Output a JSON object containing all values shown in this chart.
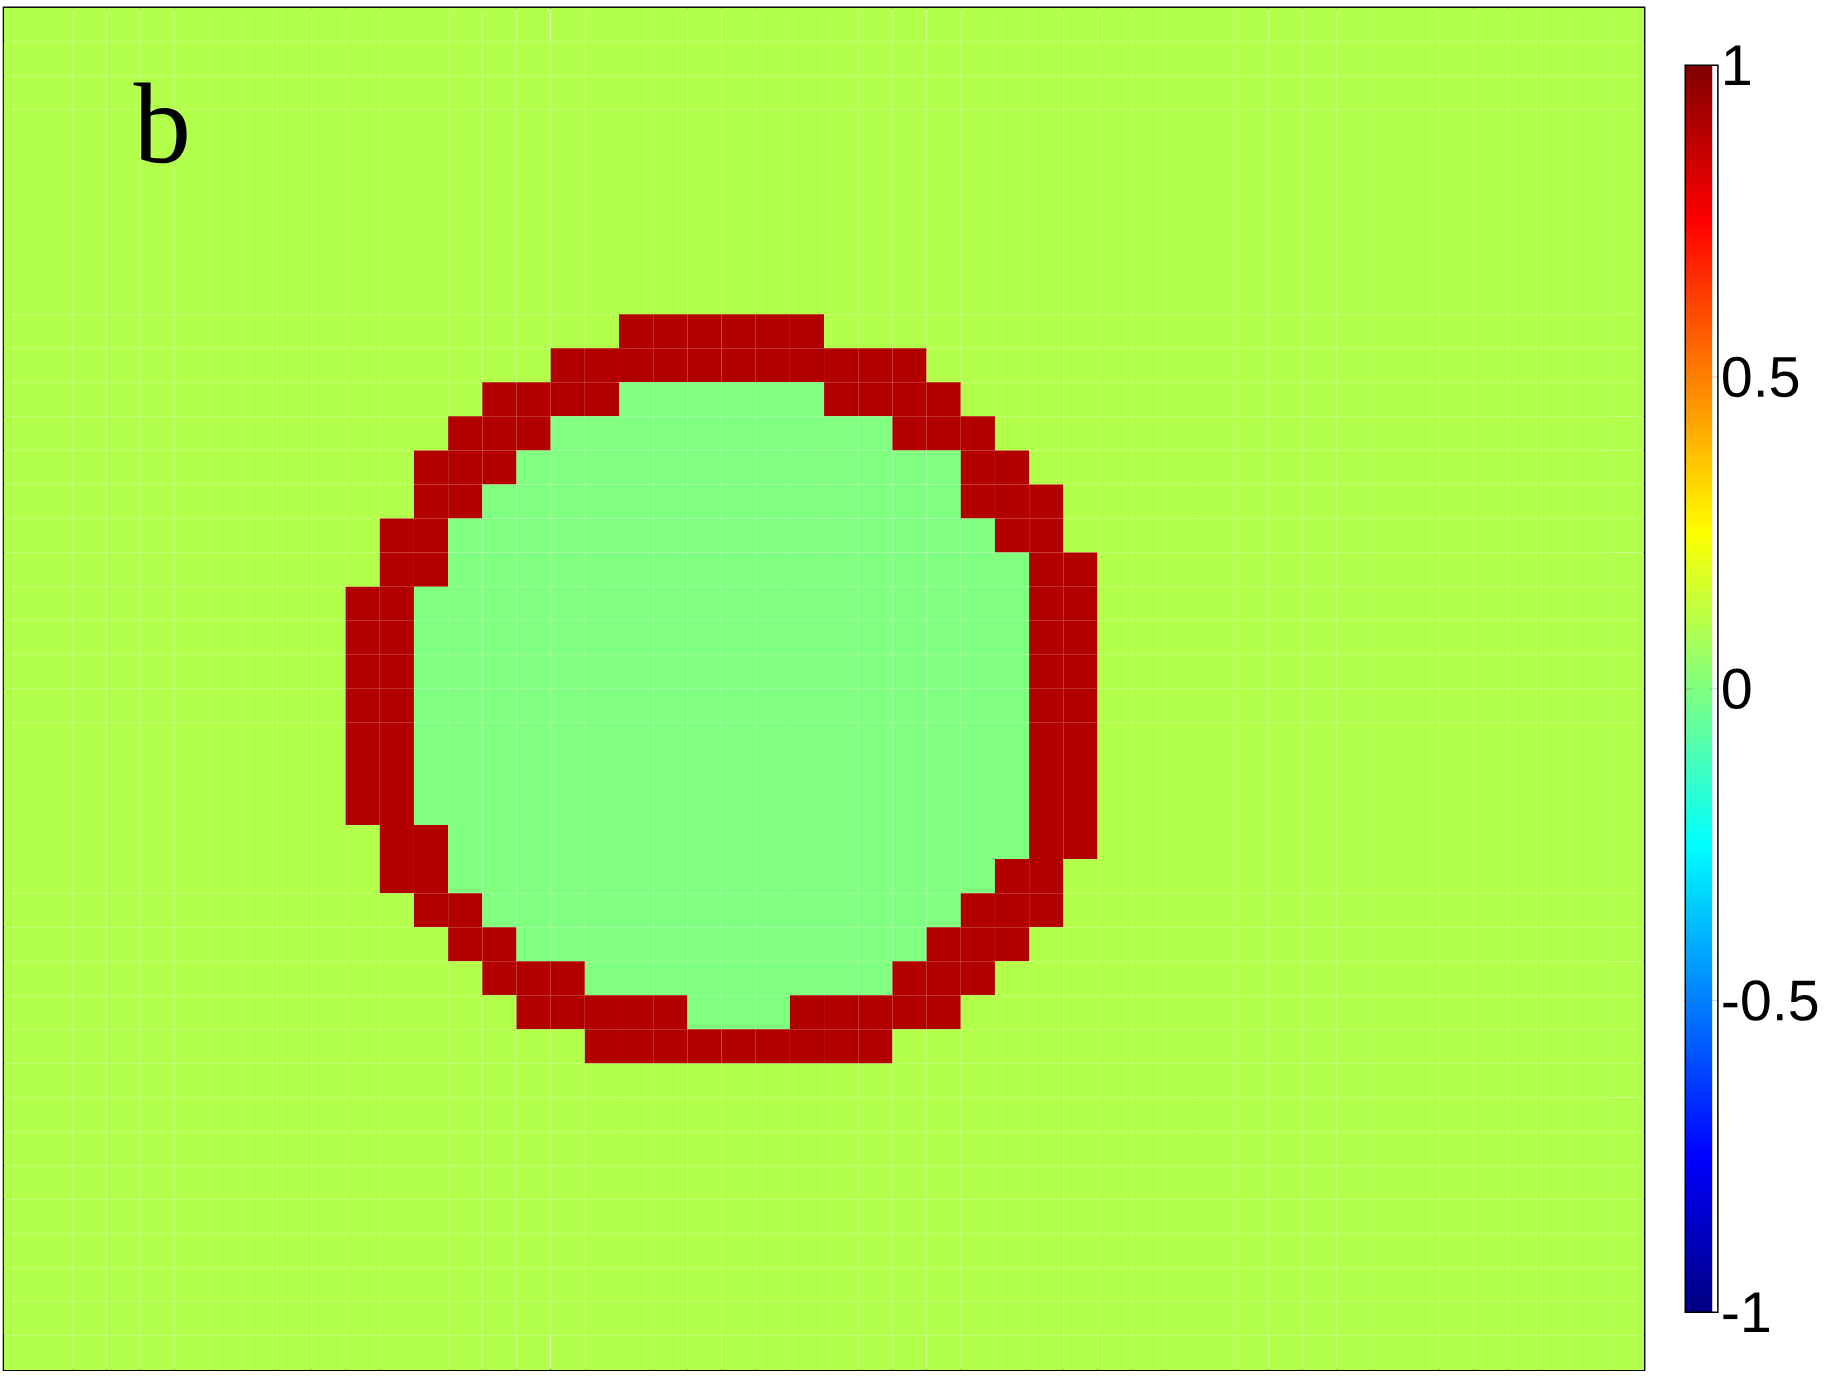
{
  "chart_data": {
    "type": "heatmap",
    "annotations": [
      "b"
    ],
    "clim": [
      -1,
      1
    ],
    "cticks": [
      -1,
      -0.5,
      0,
      0.5,
      1
    ],
    "categories": [
      null,
      null,
      null,
      null,
      null,
      null,
      null,
      null,
      null,
      null,
      null,
      null,
      null,
      null,
      null,
      null,
      null,
      null,
      null,
      null,
      null,
      null,
      null,
      null,
      null,
      null,
      null,
      null,
      null,
      null,
      null,
      null,
      null,
      null,
      null,
      null,
      null,
      null,
      null,
      null,
      null,
      null,
      null,
      null,
      null,
      null,
      null,
      null
    ],
    "y_categories": [
      null,
      null,
      null,
      null,
      null,
      null,
      null,
      null,
      null,
      null,
      null,
      null,
      null,
      null,
      null,
      null,
      null,
      null,
      null,
      null,
      null,
      null,
      null,
      null,
      null,
      null,
      null,
      null,
      null,
      null,
      null,
      null,
      null,
      null,
      null,
      null,
      null,
      null,
      null,
      null
    ],
    "cells": [
      [
        0.1,
        0.1,
        0.1,
        0.1,
        0.1,
        0.1,
        0.1,
        0.1,
        0.1,
        0.1,
        0.1,
        0.1,
        0.1,
        0.1,
        0.1,
        0.1,
        0.1,
        0.1,
        0.1,
        0.1,
        0.1,
        0.1,
        0.1,
        0.1,
        0.1,
        0.1,
        0.1,
        0.1,
        0.1,
        0.1,
        0.1,
        0.1,
        0.1,
        0.1,
        0.1,
        0.1,
        0.1,
        0.1,
        0.1,
        0.1,
        0.1,
        0.1,
        0.1,
        0.1,
        0.1,
        0.1,
        0.1,
        0.1
      ],
      [
        0.1,
        0.1,
        0.1,
        0.1,
        0.1,
        0.1,
        0.1,
        0.1,
        0.1,
        0.1,
        0.1,
        0.1,
        0.1,
        0.1,
        0.1,
        0.1,
        0.1,
        0.1,
        0.1,
        0.1,
        0.1,
        0.1,
        0.1,
        0.1,
        0.1,
        0.1,
        0.1,
        0.1,
        0.1,
        0.1,
        0.1,
        0.1,
        0.1,
        0.1,
        0.1,
        0.1,
        0.1,
        0.1,
        0.1,
        0.1,
        0.1,
        0.1,
        0.1,
        0.1,
        0.1,
        0.1,
        0.1,
        0.1
      ],
      [
        0.1,
        0.1,
        0.1,
        0.1,
        0.1,
        0.1,
        0.1,
        0.1,
        0.1,
        0.1,
        0.1,
        0.1,
        0.1,
        0.1,
        0.1,
        0.1,
        0.1,
        0.1,
        0.1,
        0.1,
        0.1,
        0.1,
        0.1,
        0.1,
        0.1,
        0.1,
        0.1,
        0.1,
        0.1,
        0.1,
        0.1,
        0.1,
        0.1,
        0.1,
        0.1,
        0.1,
        0.1,
        0.1,
        0.1,
        0.1,
        0.1,
        0.1,
        0.1,
        0.1,
        0.1,
        0.1,
        0.1,
        0.1
      ],
      [
        0.1,
        0.1,
        0.1,
        0.1,
        0.1,
        0.1,
        0.1,
        0.1,
        0.1,
        0.1,
        0.1,
        0.1,
        0.1,
        0.1,
        0.1,
        0.1,
        0.1,
        0.1,
        0.1,
        0.1,
        0.1,
        0.1,
        0.1,
        0.1,
        0.1,
        0.1,
        0.1,
        0.1,
        0.1,
        0.1,
        0.1,
        0.1,
        0.1,
        0.1,
        0.1,
        0.1,
        0.1,
        0.1,
        0.1,
        0.1,
        0.1,
        0.1,
        0.1,
        0.1,
        0.1,
        0.1,
        0.1,
        0.1
      ],
      [
        0.1,
        0.1,
        0.1,
        0.1,
        0.1,
        0.1,
        0.1,
        0.1,
        0.1,
        0.1,
        0.1,
        0.1,
        0.1,
        0.1,
        0.1,
        0.1,
        0.1,
        0.1,
        0.1,
        0.1,
        0.1,
        0.1,
        0.1,
        0.1,
        0.1,
        0.1,
        0.1,
        0.1,
        0.1,
        0.1,
        0.1,
        0.1,
        0.1,
        0.1,
        0.1,
        0.1,
        0.1,
        0.1,
        0.1,
        0.1,
        0.1,
        0.1,
        0.1,
        0.1,
        0.1,
        0.1,
        0.1,
        0.1
      ],
      [
        0.1,
        0.1,
        0.1,
        0.1,
        0.1,
        0.1,
        0.1,
        0.1,
        0.1,
        0.1,
        0.1,
        0.1,
        0.1,
        0.1,
        0.1,
        0.1,
        0.1,
        0.1,
        0.1,
        0.1,
        0.1,
        0.1,
        0.1,
        0.1,
        0.1,
        0.1,
        0.1,
        0.1,
        0.1,
        0.1,
        0.1,
        0.1,
        0.1,
        0.1,
        0.1,
        0.1,
        0.1,
        0.1,
        0.1,
        0.1,
        0.1,
        0.1,
        0.1,
        0.1,
        0.1,
        0.1,
        0.1,
        0.1
      ],
      [
        0.1,
        0.1,
        0.1,
        0.1,
        0.1,
        0.1,
        0.1,
        0.1,
        0.1,
        0.1,
        0.1,
        0.1,
        0.1,
        0.1,
        0.1,
        0.1,
        0.1,
        0.1,
        0.1,
        0.1,
        0.1,
        0.1,
        0.1,
        0.1,
        0.1,
        0.1,
        0.1,
        0.1,
        0.1,
        0.1,
        0.1,
        0.1,
        0.1,
        0.1,
        0.1,
        0.1,
        0.1,
        0.1,
        0.1,
        0.1,
        0.1,
        0.1,
        0.1,
        0.1,
        0.1,
        0.1,
        0.1,
        0.1
      ],
      [
        0.1,
        0.1,
        0.1,
        0.1,
        0.1,
        0.1,
        0.1,
        0.1,
        0.1,
        0.1,
        0.1,
        0.1,
        0.1,
        0.1,
        0.1,
        0.1,
        0.1,
        0.1,
        0.1,
        0.1,
        0.1,
        0.1,
        0.1,
        0.1,
        0.1,
        0.1,
        0.1,
        0.1,
        0.1,
        0.1,
        0.1,
        0.1,
        0.1,
        0.1,
        0.1,
        0.1,
        0.1,
        0.1,
        0.1,
        0.1,
        0.1,
        0.1,
        0.1,
        0.1,
        0.1,
        0.1,
        0.1,
        0.1
      ],
      [
        0.1,
        0.1,
        0.1,
        0.1,
        0.1,
        0.1,
        0.1,
        0.1,
        0.1,
        0.1,
        0.1,
        0.1,
        0.1,
        0.1,
        0.1,
        0.1,
        0.1,
        0.1,
        0.1,
        0.1,
        0.1,
        0.1,
        0.1,
        0.1,
        0.1,
        0.1,
        0.1,
        0.1,
        0.1,
        0.1,
        0.1,
        0.1,
        0.1,
        0.1,
        0.1,
        0.1,
        0.1,
        0.1,
        0.1,
        0.1,
        0.1,
        0.1,
        0.1,
        0.1,
        0.1,
        0.1,
        0.1,
        0.1
      ],
      [
        0.1,
        0.1,
        0.1,
        0.1,
        0.1,
        0.1,
        0.1,
        0.1,
        0.1,
        0.1,
        0.1,
        0.1,
        0.1,
        0.1,
        0.1,
        0.1,
        0.1,
        0.1,
        0.9,
        0.9,
        0.9,
        0.9,
        0.9,
        0.9,
        0.1,
        0.1,
        0.1,
        0.1,
        0.1,
        0.1,
        0.1,
        0.1,
        0.1,
        0.1,
        0.1,
        0.1,
        0.1,
        0.1,
        0.1,
        0.1,
        0.1,
        0.1,
        0.1,
        0.1,
        0.1,
        0.1,
        0.1,
        0.1
      ],
      [
        0.1,
        0.1,
        0.1,
        0.1,
        0.1,
        0.1,
        0.1,
        0.1,
        0.1,
        0.1,
        0.1,
        0.1,
        0.1,
        0.1,
        0.1,
        0.1,
        0.9,
        0.9,
        0.9,
        0.9,
        0.9,
        0.9,
        0.9,
        0.9,
        0.9,
        0.9,
        0.9,
        0.1,
        0.1,
        0.1,
        0.1,
        0.1,
        0.1,
        0.1,
        0.1,
        0.1,
        0.1,
        0.1,
        0.1,
        0.1,
        0.1,
        0.1,
        0.1,
        0.1,
        0.1,
        0.1,
        0.1,
        0.1
      ],
      [
        0.1,
        0.1,
        0.1,
        0.1,
        0.1,
        0.1,
        0.1,
        0.1,
        0.1,
        0.1,
        0.1,
        0.1,
        0.1,
        0.1,
        0.9,
        0.9,
        0.9,
        0.9,
        0,
        0,
        0,
        0,
        0,
        0,
        0.9,
        0.9,
        0.9,
        0.9,
        0.1,
        0.1,
        0.1,
        0.1,
        0.1,
        0.1,
        0.1,
        0.1,
        0.1,
        0.1,
        0.1,
        0.1,
        0.1,
        0.1,
        0.1,
        0.1,
        0.1,
        0.1,
        0.1,
        0.1
      ],
      [
        0.1,
        0.1,
        0.1,
        0.1,
        0.1,
        0.1,
        0.1,
        0.1,
        0.1,
        0.1,
        0.1,
        0.1,
        0.1,
        0.9,
        0.9,
        0.9,
        0,
        0,
        0,
        0,
        0,
        0,
        0,
        0,
        0,
        0,
        0.9,
        0.9,
        0.9,
        0.1,
        0.1,
        0.1,
        0.1,
        0.1,
        0.1,
        0.1,
        0.1,
        0.1,
        0.1,
        0.1,
        0.1,
        0.1,
        0.1,
        0.1,
        0.1,
        0.1,
        0.1,
        0.1
      ],
      [
        0.1,
        0.1,
        0.1,
        0.1,
        0.1,
        0.1,
        0.1,
        0.1,
        0.1,
        0.1,
        0.1,
        0.1,
        0.9,
        0.9,
        0.9,
        0,
        0,
        0,
        0,
        0,
        0,
        0,
        0,
        0,
        0,
        0,
        0,
        0,
        0.9,
        0.9,
        0.1,
        0.1,
        0.1,
        0.1,
        0.1,
        0.1,
        0.1,
        0.1,
        0.1,
        0.1,
        0.1,
        0.1,
        0.1,
        0.1,
        0.1,
        0.1,
        0.1,
        0.1
      ],
      [
        0.1,
        0.1,
        0.1,
        0.1,
        0.1,
        0.1,
        0.1,
        0.1,
        0.1,
        0.1,
        0.1,
        0.1,
        0.9,
        0.9,
        0,
        0,
        0,
        0,
        0,
        0,
        0,
        0,
        0,
        0,
        0,
        0,
        0,
        0,
        0.9,
        0.9,
        0.9,
        0.1,
        0.1,
        0.1,
        0.1,
        0.1,
        0.1,
        0.1,
        0.1,
        0.1,
        0.1,
        0.1,
        0.1,
        0.1,
        0.1,
        0.1,
        0.1,
        0.1
      ],
      [
        0.1,
        0.1,
        0.1,
        0.1,
        0.1,
        0.1,
        0.1,
        0.1,
        0.1,
        0.1,
        0.1,
        0.9,
        0.9,
        0,
        0,
        0,
        0,
        0,
        0,
        0,
        0,
        0,
        0,
        0,
        0,
        0,
        0,
        0,
        0,
        0.9,
        0.9,
        0.1,
        0.1,
        0.1,
        0.1,
        0.1,
        0.1,
        0.1,
        0.1,
        0.1,
        0.1,
        0.1,
        0.1,
        0.1,
        0.1,
        0.1,
        0.1,
        0.1
      ],
      [
        0.1,
        0.1,
        0.1,
        0.1,
        0.1,
        0.1,
        0.1,
        0.1,
        0.1,
        0.1,
        0.1,
        0.9,
        0.9,
        0,
        0,
        0,
        0,
        0,
        0,
        0,
        0,
        0,
        0,
        0,
        0,
        0,
        0,
        0,
        0,
        0,
        0.9,
        0.9,
        0.1,
        0.1,
        0.1,
        0.1,
        0.1,
        0.1,
        0.1,
        0.1,
        0.1,
        0.1,
        0.1,
        0.1,
        0.1,
        0.1,
        0.1,
        0.1
      ],
      [
        0.1,
        0.1,
        0.1,
        0.1,
        0.1,
        0.1,
        0.1,
        0.1,
        0.1,
        0.1,
        0.9,
        0.9,
        0,
        0,
        0,
        0,
        0,
        0,
        0,
        0,
        0,
        0,
        0,
        0,
        0,
        0,
        0,
        0,
        0,
        0,
        0.9,
        0.9,
        0.1,
        0.1,
        0.1,
        0.1,
        0.1,
        0.1,
        0.1,
        0.1,
        0.1,
        0.1,
        0.1,
        0.1,
        0.1,
        0.1,
        0.1,
        0.1
      ],
      [
        0.1,
        0.1,
        0.1,
        0.1,
        0.1,
        0.1,
        0.1,
        0.1,
        0.1,
        0.1,
        0.9,
        0.9,
        0,
        0,
        0,
        0,
        0,
        0,
        0,
        0,
        0,
        0,
        0,
        0,
        0,
        0,
        0,
        0,
        0,
        0,
        0.9,
        0.9,
        0.1,
        0.1,
        0.1,
        0.1,
        0.1,
        0.1,
        0.1,
        0.1,
        0.1,
        0.1,
        0.1,
        0.1,
        0.1,
        0.1,
        0.1,
        0.1
      ],
      [
        0.1,
        0.1,
        0.1,
        0.1,
        0.1,
        0.1,
        0.1,
        0.1,
        0.1,
        0.1,
        0.9,
        0.9,
        0,
        0,
        0,
        0,
        0,
        0,
        0,
        0,
        0,
        0,
        0,
        0,
        0,
        0,
        0,
        0,
        0,
        0,
        0.9,
        0.9,
        0.1,
        0.1,
        0.1,
        0.1,
        0.1,
        0.1,
        0.1,
        0.1,
        0.1,
        0.1,
        0.1,
        0.1,
        0.1,
        0.1,
        0.1,
        0.1
      ],
      [
        0.1,
        0.1,
        0.1,
        0.1,
        0.1,
        0.1,
        0.1,
        0.1,
        0.1,
        0.1,
        0.9,
        0.9,
        0,
        0,
        0,
        0,
        0,
        0,
        0,
        0,
        0,
        0,
        0,
        0,
        0,
        0,
        0,
        0,
        0,
        0,
        0.9,
        0.9,
        0.1,
        0.1,
        0.1,
        0.1,
        0.1,
        0.1,
        0.1,
        0.1,
        0.1,
        0.1,
        0.1,
        0.1,
        0.1,
        0.1,
        0.1,
        0.1
      ],
      [
        0.1,
        0.1,
        0.1,
        0.1,
        0.1,
        0.1,
        0.1,
        0.1,
        0.1,
        0.1,
        0.9,
        0.9,
        0,
        0,
        0,
        0,
        0,
        0,
        0,
        0,
        0,
        0,
        0,
        0,
        0,
        0,
        0,
        0,
        0,
        0,
        0.9,
        0.9,
        0.1,
        0.1,
        0.1,
        0.1,
        0.1,
        0.1,
        0.1,
        0.1,
        0.1,
        0.1,
        0.1,
        0.1,
        0.1,
        0.1,
        0.1,
        0.1
      ],
      [
        0.1,
        0.1,
        0.1,
        0.1,
        0.1,
        0.1,
        0.1,
        0.1,
        0.1,
        0.1,
        0.9,
        0.9,
        0,
        0,
        0,
        0,
        0,
        0,
        0,
        0,
        0,
        0,
        0,
        0,
        0,
        0,
        0,
        0,
        0,
        0,
        0.9,
        0.9,
        0.1,
        0.1,
        0.1,
        0.1,
        0.1,
        0.1,
        0.1,
        0.1,
        0.1,
        0.1,
        0.1,
        0.1,
        0.1,
        0.1,
        0.1,
        0.1
      ],
      [
        0.1,
        0.1,
        0.1,
        0.1,
        0.1,
        0.1,
        0.1,
        0.1,
        0.1,
        0.1,
        0.9,
        0.9,
        0,
        0,
        0,
        0,
        0,
        0,
        0,
        0,
        0,
        0,
        0,
        0,
        0,
        0,
        0,
        0,
        0,
        0,
        0.9,
        0.9,
        0.1,
        0.1,
        0.1,
        0.1,
        0.1,
        0.1,
        0.1,
        0.1,
        0.1,
        0.1,
        0.1,
        0.1,
        0.1,
        0.1,
        0.1,
        0.1
      ],
      [
        0.1,
        0.1,
        0.1,
        0.1,
        0.1,
        0.1,
        0.1,
        0.1,
        0.1,
        0.1,
        0.1,
        0.9,
        0.9,
        0,
        0,
        0,
        0,
        0,
        0,
        0,
        0,
        0,
        0,
        0,
        0,
        0,
        0,
        0,
        0,
        0,
        0.9,
        0.9,
        0.1,
        0.1,
        0.1,
        0.1,
        0.1,
        0.1,
        0.1,
        0.1,
        0.1,
        0.1,
        0.1,
        0.1,
        0.1,
        0.1,
        0.1,
        0.1
      ],
      [
        0.1,
        0.1,
        0.1,
        0.1,
        0.1,
        0.1,
        0.1,
        0.1,
        0.1,
        0.1,
        0.1,
        0.9,
        0.9,
        0,
        0,
        0,
        0,
        0,
        0,
        0,
        0,
        0,
        0,
        0,
        0,
        0,
        0,
        0,
        0,
        0.9,
        0.9,
        0.1,
        0.1,
        0.1,
        0.1,
        0.1,
        0.1,
        0.1,
        0.1,
        0.1,
        0.1,
        0.1,
        0.1,
        0.1,
        0.1,
        0.1,
        0.1,
        0.1
      ],
      [
        0.1,
        0.1,
        0.1,
        0.1,
        0.1,
        0.1,
        0.1,
        0.1,
        0.1,
        0.1,
        0.1,
        0.1,
        0.9,
        0.9,
        0,
        0,
        0,
        0,
        0,
        0,
        0,
        0,
        0,
        0,
        0,
        0,
        0,
        0,
        0.9,
        0.9,
        0.9,
        0.1,
        0.1,
        0.1,
        0.1,
        0.1,
        0.1,
        0.1,
        0.1,
        0.1,
        0.1,
        0.1,
        0.1,
        0.1,
        0.1,
        0.1,
        0.1,
        0.1
      ],
      [
        0.1,
        0.1,
        0.1,
        0.1,
        0.1,
        0.1,
        0.1,
        0.1,
        0.1,
        0.1,
        0.1,
        0.1,
        0.1,
        0.9,
        0.9,
        0,
        0,
        0,
        0,
        0,
        0,
        0,
        0,
        0,
        0,
        0,
        0,
        0.9,
        0.9,
        0.9,
        0.1,
        0.1,
        0.1,
        0.1,
        0.1,
        0.1,
        0.1,
        0.1,
        0.1,
        0.1,
        0.1,
        0.1,
        0.1,
        0.1,
        0.1,
        0.1,
        0.1,
        0.1
      ],
      [
        0.1,
        0.1,
        0.1,
        0.1,
        0.1,
        0.1,
        0.1,
        0.1,
        0.1,
        0.1,
        0.1,
        0.1,
        0.1,
        0.1,
        0.9,
        0.9,
        0.9,
        0,
        0,
        0,
        0,
        0,
        0,
        0,
        0,
        0,
        0.9,
        0.9,
        0.9,
        0.1,
        0.1,
        0.1,
        0.1,
        0.1,
        0.1,
        0.1,
        0.1,
        0.1,
        0.1,
        0.1,
        0.1,
        0.1,
        0.1,
        0.1,
        0.1,
        0.1,
        0.1,
        0.1
      ],
      [
        0.1,
        0.1,
        0.1,
        0.1,
        0.1,
        0.1,
        0.1,
        0.1,
        0.1,
        0.1,
        0.1,
        0.1,
        0.1,
        0.1,
        0.1,
        0.9,
        0.9,
        0.9,
        0.9,
        0.9,
        0,
        0,
        0,
        0.9,
        0.9,
        0.9,
        0.9,
        0.9,
        0.1,
        0.1,
        0.1,
        0.1,
        0.1,
        0.1,
        0.1,
        0.1,
        0.1,
        0.1,
        0.1,
        0.1,
        0.1,
        0.1,
        0.1,
        0.1,
        0.1,
        0.1,
        0.1,
        0.1
      ],
      [
        0.1,
        0.1,
        0.1,
        0.1,
        0.1,
        0.1,
        0.1,
        0.1,
        0.1,
        0.1,
        0.1,
        0.1,
        0.1,
        0.1,
        0.1,
        0.1,
        0.1,
        0.9,
        0.9,
        0.9,
        0.9,
        0.9,
        0.9,
        0.9,
        0.9,
        0.9,
        0.1,
        0.1,
        0.1,
        0.1,
        0.1,
        0.1,
        0.1,
        0.1,
        0.1,
        0.1,
        0.1,
        0.1,
        0.1,
        0.1,
        0.1,
        0.1,
        0.1,
        0.1,
        0.1,
        0.1,
        0.1,
        0.1
      ],
      [
        0.1,
        0.1,
        0.1,
        0.1,
        0.1,
        0.1,
        0.1,
        0.1,
        0.1,
        0.1,
        0.1,
        0.1,
        0.1,
        0.1,
        0.1,
        0.1,
        0.1,
        0.1,
        0.1,
        0.1,
        0.1,
        0.1,
        0.1,
        0.1,
        0.1,
        0.1,
        0.1,
        0.1,
        0.1,
        0.1,
        0.1,
        0.1,
        0.1,
        0.1,
        0.1,
        0.1,
        0.1,
        0.1,
        0.1,
        0.1,
        0.1,
        0.1,
        0.1,
        0.1,
        0.1,
        0.1,
        0.1,
        0.1
      ],
      [
        0.1,
        0.1,
        0.1,
        0.1,
        0.1,
        0.1,
        0.1,
        0.1,
        0.1,
        0.1,
        0.1,
        0.1,
        0.1,
        0.1,
        0.1,
        0.1,
        0.1,
        0.1,
        0.1,
        0.1,
        0.1,
        0.1,
        0.1,
        0.1,
        0.1,
        0.1,
        0.1,
        0.1,
        0.1,
        0.1,
        0.1,
        0.1,
        0.1,
        0.1,
        0.1,
        0.1,
        0.1,
        0.1,
        0.1,
        0.1,
        0.1,
        0.1,
        0.1,
        0.1,
        0.1,
        0.1,
        0.1,
        0.1
      ],
      [
        0.1,
        0.1,
        0.1,
        0.1,
        0.1,
        0.1,
        0.1,
        0.1,
        0.1,
        0.1,
        0.1,
        0.1,
        0.1,
        0.1,
        0.1,
        0.1,
        0.1,
        0.1,
        0.1,
        0.1,
        0.1,
        0.1,
        0.1,
        0.1,
        0.1,
        0.1,
        0.1,
        0.1,
        0.1,
        0.1,
        0.1,
        0.1,
        0.1,
        0.1,
        0.1,
        0.1,
        0.1,
        0.1,
        0.1,
        0.1,
        0.1,
        0.1,
        0.1,
        0.1,
        0.1,
        0.1,
        0.1,
        0.1
      ],
      [
        0.1,
        0.1,
        0.1,
        0.1,
        0.1,
        0.1,
        0.1,
        0.1,
        0.1,
        0.1,
        0.1,
        0.1,
        0.1,
        0.1,
        0.1,
        0.1,
        0.1,
        0.1,
        0.1,
        0.1,
        0.1,
        0.1,
        0.1,
        0.1,
        0.1,
        0.1,
        0.1,
        0.1,
        0.1,
        0.1,
        0.1,
        0.1,
        0.1,
        0.1,
        0.1,
        0.1,
        0.1,
        0.1,
        0.1,
        0.1,
        0.1,
        0.1,
        0.1,
        0.1,
        0.1,
        0.1,
        0.1,
        0.1
      ],
      [
        0.1,
        0.1,
        0.1,
        0.1,
        0.1,
        0.1,
        0.1,
        0.1,
        0.1,
        0.1,
        0.1,
        0.1,
        0.1,
        0.1,
        0.1,
        0.1,
        0.1,
        0.1,
        0.1,
        0.1,
        0.1,
        0.1,
        0.1,
        0.1,
        0.1,
        0.1,
        0.1,
        0.1,
        0.1,
        0.1,
        0.1,
        0.1,
        0.1,
        0.1,
        0.1,
        0.1,
        0.1,
        0.1,
        0.1,
        0.1,
        0.1,
        0.1,
        0.1,
        0.1,
        0.1,
        0.1,
        0.1,
        0.1
      ],
      [
        0.1,
        0.1,
        0.1,
        0.1,
        0.1,
        0.1,
        0.1,
        0.1,
        0.1,
        0.1,
        0.1,
        0.1,
        0.1,
        0.1,
        0.1,
        0.1,
        0.1,
        0.1,
        0.1,
        0.1,
        0.1,
        0.1,
        0.1,
        0.1,
        0.1,
        0.1,
        0.1,
        0.1,
        0.1,
        0.1,
        0.1,
        0.1,
        0.1,
        0.1,
        0.1,
        0.1,
        0.1,
        0.1,
        0.1,
        0.1,
        0.1,
        0.1,
        0.1,
        0.1,
        0.1,
        0.1,
        0.1,
        0.1
      ],
      [
        0.1,
        0.1,
        0.1,
        0.1,
        0.1,
        0.1,
        0.1,
        0.1,
        0.1,
        0.1,
        0.1,
        0.1,
        0.1,
        0.1,
        0.1,
        0.1,
        0.1,
        0.1,
        0.1,
        0.1,
        0.1,
        0.1,
        0.1,
        0.1,
        0.1,
        0.1,
        0.1,
        0.1,
        0.1,
        0.1,
        0.1,
        0.1,
        0.1,
        0.1,
        0.1,
        0.1,
        0.1,
        0.1,
        0.1,
        0.1,
        0.1,
        0.1,
        0.1,
        0.1,
        0.1,
        0.1,
        0.1,
        0.1
      ],
      [
        0.1,
        0.1,
        0.1,
        0.1,
        0.1,
        0.1,
        0.1,
        0.1,
        0.1,
        0.1,
        0.1,
        0.1,
        0.1,
        0.1,
        0.1,
        0.1,
        0.1,
        0.1,
        0.1,
        0.1,
        0.1,
        0.1,
        0.1,
        0.1,
        0.1,
        0.1,
        0.1,
        0.1,
        0.1,
        0.1,
        0.1,
        0.1,
        0.1,
        0.1,
        0.1,
        0.1,
        0.1,
        0.1,
        0.1,
        0.1,
        0.1,
        0.1,
        0.1,
        0.1,
        0.1,
        0.1,
        0.1,
        0.1
      ],
      [
        0.1,
        0.1,
        0.1,
        0.1,
        0.1,
        0.1,
        0.1,
        0.1,
        0.1,
        0.1,
        0.1,
        0.1,
        0.1,
        0.1,
        0.1,
        0.1,
        0.1,
        0.1,
        0.1,
        0.1,
        0.1,
        0.1,
        0.1,
        0.1,
        0.1,
        0.1,
        0.1,
        0.1,
        0.1,
        0.1,
        0.1,
        0.1,
        0.1,
        0.1,
        0.1,
        0.1,
        0.1,
        0.1,
        0.1,
        0.1,
        0.1,
        0.1,
        0.1,
        0.1,
        0.1,
        0.1,
        0.1,
        0.1
      ]
    ]
  }
}
